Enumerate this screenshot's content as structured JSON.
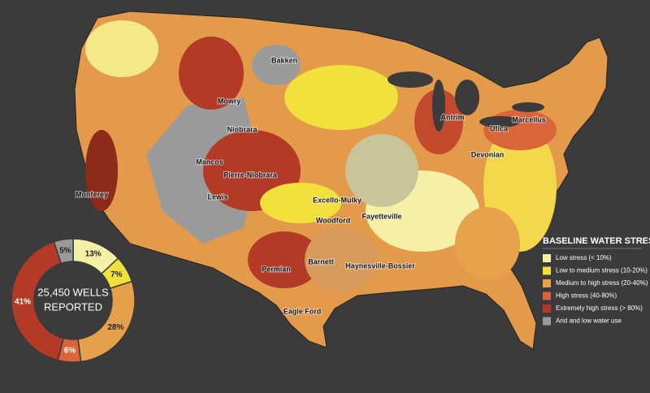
{
  "map": {
    "plays": [
      "Bakken",
      "Mowry",
      "Niobrara",
      "Mancos",
      "Lewis",
      "Pierre-Niobrara",
      "Excello-Mulky",
      "Woodford",
      "Fayetteville",
      "Antrim",
      "Utica",
      "Marcellus",
      "Devonian",
      "Monterey",
      "Barnett",
      "Haynesville-Bossier",
      "Permian",
      "Eagle Ford"
    ]
  },
  "chart_data": {
    "type": "donut",
    "center_label": [
      "25,450 WELLS",
      "REPORTED"
    ],
    "legend_title": "BASELINE WATER STRESS",
    "categories": [
      "Low stress (< 10%)",
      "Low to medium stress (10-20%)",
      "Medium to high stress (20-40%)",
      "High stress (40-80%)",
      "Extremely high stress (> 80%)",
      "Arid and low water use"
    ],
    "values": [
      13,
      7,
      28,
      6,
      41,
      5
    ],
    "value_labels": [
      "13%",
      "7%",
      "28%",
      "6%",
      "41%",
      "5%"
    ],
    "colors": [
      "#f6f0a6",
      "#f2e03c",
      "#e5a04c",
      "#d9663a",
      "#b23a26",
      "#9a9a9a"
    ]
  }
}
